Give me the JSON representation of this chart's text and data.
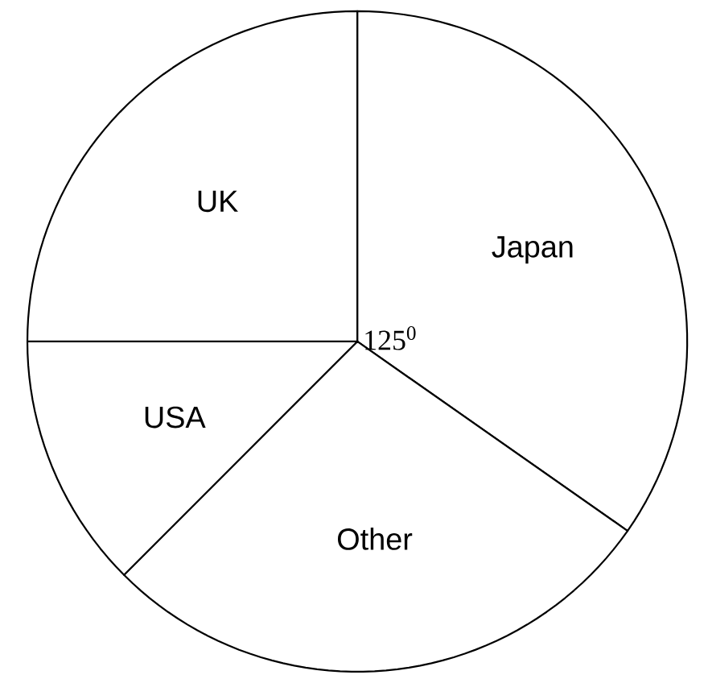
{
  "chart_data": {
    "type": "pie",
    "categories": [
      "Japan",
      "Other",
      "USA",
      "UK"
    ],
    "values": [
      34.72,
      27.78,
      12.5,
      25
    ],
    "colors": [
      "#ffffff",
      "#ffffff",
      "#ffffff",
      "#ffffff"
    ],
    "annotations": [
      "125$^{0}$"
    ]
  }
}
